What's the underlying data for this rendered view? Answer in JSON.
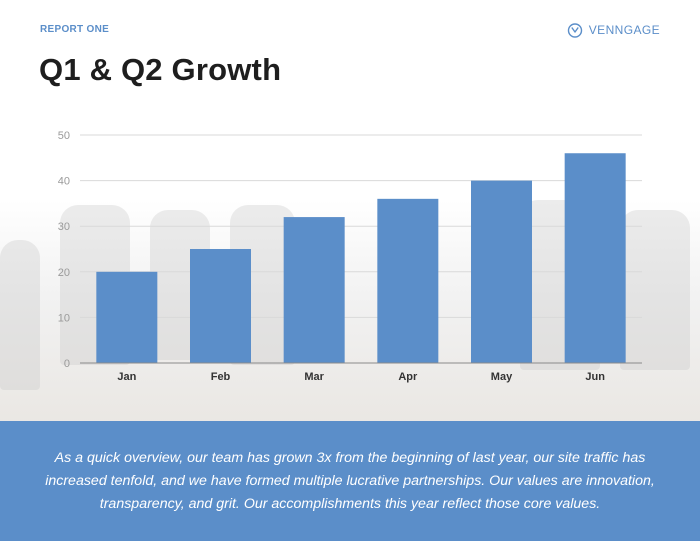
{
  "header": {
    "report_label": "REPORT ONE",
    "brand_name": "VENNGAGE",
    "brand_icon": "venngage-logo-icon",
    "title": "Q1 & Q2 Growth"
  },
  "colors": {
    "accent": "#5b8ec9",
    "bar": "#5b8ec9",
    "title": "#1e1e1e",
    "grid": "#d9d9d9",
    "tick": "#9a9a9a"
  },
  "chart_data": {
    "type": "bar",
    "title": "",
    "xlabel": "",
    "ylabel": "",
    "categories": [
      "Jan",
      "Feb",
      "Mar",
      "Apr",
      "May",
      "Jun"
    ],
    "values": [
      20,
      25,
      32,
      36,
      40,
      46
    ],
    "ylim": [
      0,
      50
    ],
    "yticks": [
      0,
      10,
      20,
      30,
      40,
      50
    ],
    "grid": true,
    "legend": "none"
  },
  "footer": {
    "text": "As a quick overview, our team has grown 3x from the beginning of last year, our site traffic has increased tenfold, and we have formed multiple lucrative partnerships. Our values are innovation, transparency, and grit. Our accomplishments this year reflect those core values."
  }
}
